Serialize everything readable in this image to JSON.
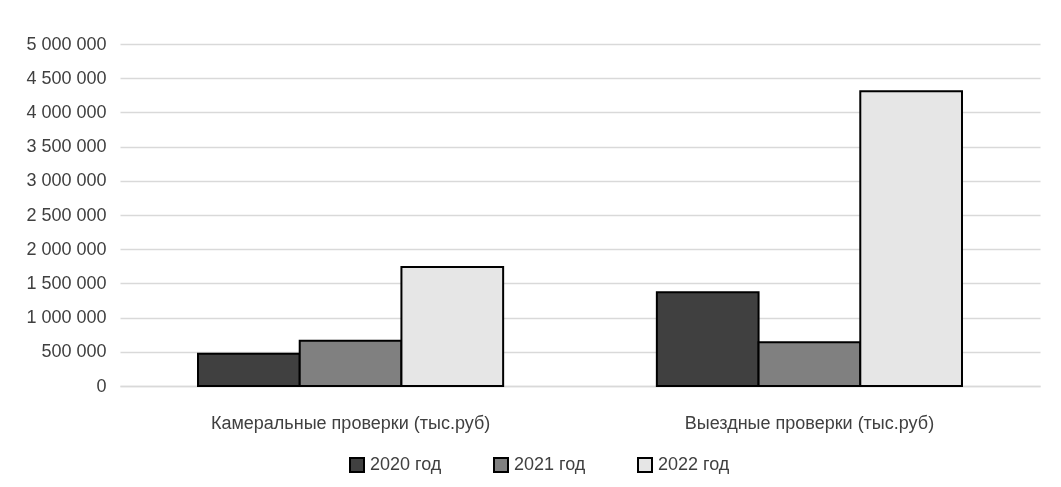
{
  "chart_data": {
    "type": "bar",
    "categories": [
      "Камеральные проверки (тыс.руб)",
      "Выездные проверки (тыс.руб)"
    ],
    "series": [
      {
        "name": "2020 год",
        "color": "#404040",
        "values": [
          470000,
          1370000
        ]
      },
      {
        "name": "2021 год",
        "color": "#808080",
        "values": [
          660000,
          640000
        ]
      },
      {
        "name": "2022 год",
        "color": "#e6e6e6",
        "values": [
          1740000,
          4310000
        ]
      }
    ],
    "ylim": [
      0,
      5000000
    ],
    "yticks": [
      0,
      {
        "value": 500000,
        "label": "500 000"
      },
      {
        "value": 1000000,
        "label": "1 000 000"
      },
      {
        "value": 1500000,
        "label": "1 500 000"
      },
      {
        "value": 2000000,
        "label": "2 000 000"
      },
      {
        "value": 2500000,
        "label": "2 500 000"
      },
      {
        "value": 3000000,
        "label": "3 000 000"
      },
      {
        "value": 3500000,
        "label": "3 500 000"
      },
      {
        "value": 4000000,
        "label": "4 000 000"
      },
      {
        "value": 4500000,
        "label": "4 500 000"
      },
      {
        "value": 5000000,
        "label": "5 000 000"
      }
    ],
    "grid": "y",
    "legend": "bottom"
  }
}
